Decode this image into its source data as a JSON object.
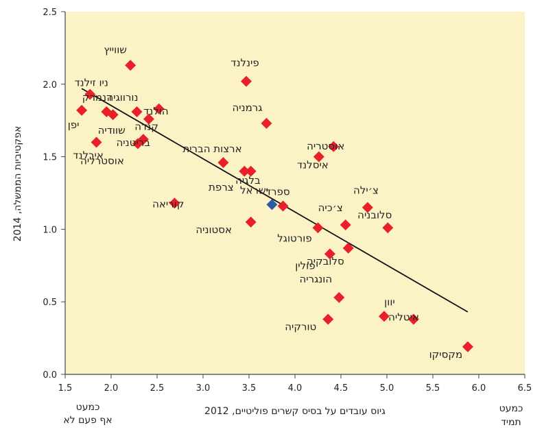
{
  "chart_data": {
    "type": "scatter",
    "title": "",
    "xlabel": "גיוס עובדים על בסיס קשרים פוליטיים, 2012",
    "ylabel": "אפקטיביות הממשלה, 2014",
    "xlim": [
      1.5,
      6.5
    ],
    "ylim": [
      0,
      2.5
    ],
    "x_ticks": [
      "1.5",
      "2.0",
      "2.5",
      "3.0",
      "3.5",
      "4.0",
      "4.5",
      "5.0",
      "5.5",
      "6.0",
      "6.5"
    ],
    "y_ticks": [
      "0.0",
      "0.5",
      "1.0",
      "1.5",
      "2.0",
      "2.5"
    ],
    "x_left_note": [
      "כמעט",
      "אף פעם לא"
    ],
    "x_right_note": [
      "כמעט",
      "תמיד"
    ],
    "colors": {
      "point": "#e8202a",
      "highlight": "#2a5aa8",
      "background": "#fbf3c6",
      "line": "#111111"
    },
    "trendline": {
      "x": [
        1.68,
        5.88
      ],
      "y": [
        1.97,
        0.43
      ]
    },
    "points": [
      {
        "name": "שווייץ",
        "x": 2.21,
        "y": 2.13
      },
      {
        "name": "פינלנד",
        "x": 3.47,
        "y": 2.02
      },
      {
        "name": "ניו זילנד",
        "x": 1.77,
        "y": 1.93
      },
      {
        "name": "דנמרק",
        "x": 1.95,
        "y": 1.81
      },
      {
        "name": "נורווגיה",
        "x": 2.28,
        "y": 1.81
      },
      {
        "name": "יפן",
        "x": 1.68,
        "y": 1.82
      },
      {
        "name": "שוודיה",
        "x": 2.02,
        "y": 1.79
      },
      {
        "name": "הולנד",
        "x": 2.52,
        "y": 1.83
      },
      {
        "name": "קנדה",
        "x": 2.41,
        "y": 1.76
      },
      {
        "name": "גרמניה",
        "x": 3.69,
        "y": 1.73
      },
      {
        "name": "בריטניה",
        "x": 2.35,
        "y": 1.62
      },
      {
        "name": "אוסטרליה",
        "x": 2.29,
        "y": 1.59
      },
      {
        "name": "אירלנד",
        "x": 1.84,
        "y": 1.6
      },
      {
        "name": "אוסטריה",
        "x": 4.42,
        "y": 1.57
      },
      {
        "name": "איסלנד",
        "x": 4.26,
        "y": 1.5
      },
      {
        "name": "ארצות הברית",
        "x": 3.22,
        "y": 1.46
      },
      {
        "name": "צרפת",
        "x": 3.45,
        "y": 1.4
      },
      {
        "name": "בלגיה",
        "x": 3.52,
        "y": 1.4
      },
      {
        "name": "קוריאה",
        "x": 2.69,
        "y": 1.18
      },
      {
        "name": "ישראל",
        "x": 3.75,
        "y": 1.17,
        "highlight": true
      },
      {
        "name": "ספרד",
        "x": 3.87,
        "y": 1.16
      },
      {
        "name": "צ׳ילה",
        "x": 4.79,
        "y": 1.15
      },
      {
        "name": "אסטוניה",
        "x": 3.52,
        "y": 1.05
      },
      {
        "name": "צ׳כיה",
        "x": 4.55,
        "y": 1.03
      },
      {
        "name": "סלובניה",
        "x": 5.01,
        "y": 1.01
      },
      {
        "name": "פורטוגל",
        "x": 4.25,
        "y": 1.01
      },
      {
        "name": "סלובקיה",
        "x": 4.58,
        "y": 0.87
      },
      {
        "name": "פולין",
        "x": 4.38,
        "y": 0.83
      },
      {
        "name": "הונגריה",
        "x": 4.48,
        "y": 0.53
      },
      {
        "name": "יוון",
        "x": 4.97,
        "y": 0.4
      },
      {
        "name": "איטליה",
        "x": 5.29,
        "y": 0.38
      },
      {
        "name": "טורקיה",
        "x": 4.36,
        "y": 0.38
      },
      {
        "name": "מקסיקו",
        "x": 5.88,
        "y": 0.19
      }
    ]
  }
}
